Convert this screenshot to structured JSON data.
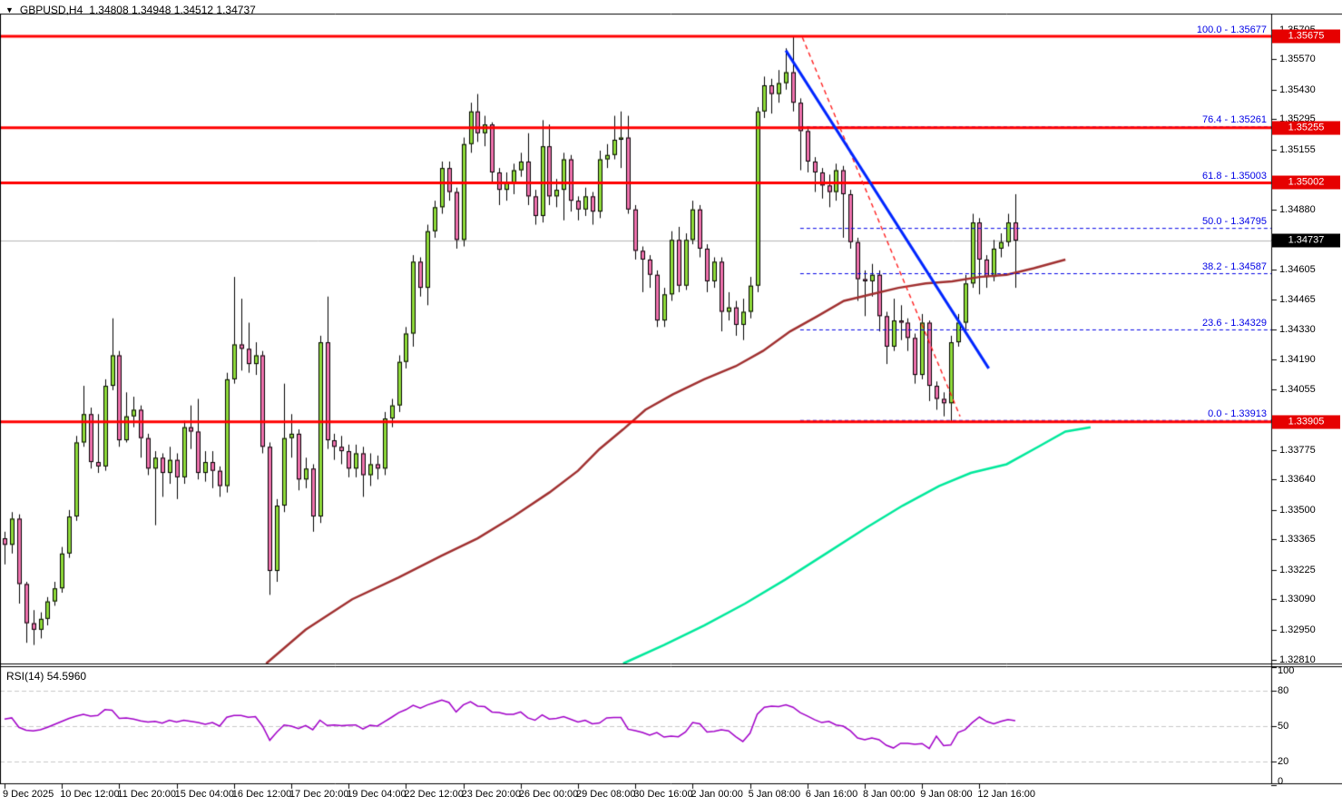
{
  "header": {
    "symbol": "GBPUSD,H4",
    "ohlc": "1.34808 1.34948 1.34512 1.34737"
  },
  "rsi_pane": {
    "name": "RSI(14)",
    "value": "54.5960"
  },
  "colors": {
    "bull": "#8FDC3A",
    "bear": "#F072AE",
    "wick": "#000000",
    "body_border": "#000000",
    "hline_red": "#FF0000",
    "fib_blue": "#0000E6",
    "trend_blue": "#0026FF",
    "trend_red": "#FF2020",
    "ma_slow": "#A03030",
    "ma_fast": "#00E89B",
    "rsi_line": "#A100C8",
    "bid_gray": "#B5B5B5",
    "badge_red": "#E60000",
    "badge_black": "#000000",
    "grid_dash": "#C8C8C8",
    "frame": "#000000"
  },
  "chart_data": {
    "type": "candlestick",
    "title": "GBPUSD,H4",
    "price_axis": {
      "p_top": 1.35775,
      "p_bottom": 1.32795,
      "ticks": [
        1.35705,
        1.3557,
        1.3543,
        1.35295,
        1.35155,
        1.35015,
        1.3488,
        1.3474,
        1.34605,
        1.34465,
        1.3433,
        1.3419,
        1.34055,
        1.33915,
        1.33775,
        1.3364,
        1.335,
        1.33365,
        1.33225,
        1.3309,
        1.3295,
        1.3281
      ]
    },
    "bid": {
      "price": 1.34737,
      "badge": "1.34737"
    },
    "hlines": [
      {
        "price": 1.35675,
        "badge": "1.35675"
      },
      {
        "price": 1.35255,
        "badge": "1.35255"
      },
      {
        "price": 1.35002,
        "badge": "1.35002"
      },
      {
        "price": 1.33905,
        "badge": "1.33905"
      }
    ],
    "fibonacci": {
      "start_index": 111,
      "levels": [
        {
          "pct": 100.0,
          "price": 1.35677,
          "label": "100.0 - 1.35677"
        },
        {
          "pct": 76.4,
          "price": 1.35261,
          "label": "76.4 - 1.35261"
        },
        {
          "pct": 61.8,
          "price": 1.35003,
          "label": "61.8 - 1.35003"
        },
        {
          "pct": 50.0,
          "price": 1.34795,
          "label": "50.0 - 1.34795"
        },
        {
          "pct": 38.2,
          "price": 1.34587,
          "label": "38.2 - 1.34587"
        },
        {
          "pct": 23.6,
          "price": 1.34329,
          "label": "23.6 - 1.34329"
        },
        {
          "pct": 0.0,
          "price": 1.33913,
          "label": "0.0 - 1.33913"
        }
      ]
    },
    "trendlines": {
      "blue_solid": [
        [
          109.0,
          1.3561
        ],
        [
          137.3,
          1.3415
        ]
      ],
      "red_dashed": [
        [
          111.3,
          1.3567
        ],
        [
          133.3,
          1.3393
        ]
      ]
    },
    "ma_slow": [
      [
        36.5,
        1.32795
      ],
      [
        42,
        1.3295
      ],
      [
        48.5,
        1.3309
      ],
      [
        55,
        1.3319
      ],
      [
        61,
        1.3329
      ],
      [
        66,
        1.3337
      ],
      [
        71,
        1.3347
      ],
      [
        76,
        1.3358
      ],
      [
        80,
        1.3368
      ],
      [
        83,
        1.3378
      ],
      [
        86.3,
        1.3387
      ],
      [
        89.4,
        1.3396
      ],
      [
        93.2,
        1.3403
      ],
      [
        97.6,
        1.341
      ],
      [
        102,
        1.3416
      ],
      [
        105.8,
        1.3423
      ],
      [
        109.6,
        1.3432
      ],
      [
        113.4,
        1.3439
      ],
      [
        117.1,
        1.3446
      ],
      [
        120.9,
        1.3449
      ],
      [
        124.7,
        1.3452
      ],
      [
        128.5,
        1.3454
      ],
      [
        132.2,
        1.3455
      ],
      [
        136,
        1.3457
      ],
      [
        139.8,
        1.3458
      ],
      [
        143.6,
        1.3461
      ],
      [
        148,
        1.3465
      ]
    ],
    "ma_fast": [
      [
        86.3,
        1.32795
      ],
      [
        92,
        1.3288
      ],
      [
        97.6,
        1.3297
      ],
      [
        103.3,
        1.3307
      ],
      [
        108.9,
        1.3318
      ],
      [
        114.6,
        1.333
      ],
      [
        120.3,
        1.3342
      ],
      [
        125.3,
        1.3352
      ],
      [
        130.4,
        1.3361
      ],
      [
        134.8,
        1.3367
      ],
      [
        139.8,
        1.3371
      ],
      [
        144.2,
        1.3379
      ],
      [
        148,
        1.3386
      ],
      [
        151.5,
        1.3388
      ]
    ],
    "time_labels": [
      {
        "i": 0,
        "text": "9 Dec 2025"
      },
      {
        "i": 8,
        "text": "10 Dec 12:00"
      },
      {
        "i": 16,
        "text": "11 Dec 20:00"
      },
      {
        "i": 24,
        "text": "15 Dec 04:00"
      },
      {
        "i": 32,
        "text": "16 Dec 12:00"
      },
      {
        "i": 40,
        "text": "17 Dec 20:00"
      },
      {
        "i": 48,
        "text": "19 Dec 04:00"
      },
      {
        "i": 56,
        "text": "22 Dec 12:00"
      },
      {
        "i": 64,
        "text": "23 Dec 20:00"
      },
      {
        "i": 72,
        "text": "26 Dec 00:00"
      },
      {
        "i": 80,
        "text": "29 Dec 08:00"
      },
      {
        "i": 88,
        "text": "30 Dec 16:00"
      },
      {
        "i": 96,
        "text": "2 Jan 00:00"
      },
      {
        "i": 104,
        "text": "5 Jan 08:00"
      },
      {
        "i": 112,
        "text": "6 Jan 16:00"
      },
      {
        "i": 120,
        "text": "8 Jan 00:00"
      },
      {
        "i": 128,
        "text": "9 Jan 08:00"
      },
      {
        "i": 136,
        "text": "12 Jan 16:00"
      }
    ],
    "candles": [
      [
        1.3337,
        1.334,
        1.3325,
        1.3334
      ],
      [
        1.3334,
        1.3349,
        1.333,
        1.3346
      ],
      [
        1.3346,
        1.3348,
        1.3307,
        1.3316
      ],
      [
        1.3316,
        1.3317,
        1.3289,
        1.3298
      ],
      [
        1.3298,
        1.3304,
        1.3288,
        1.3295
      ],
      [
        1.3295,
        1.3303,
        1.3291,
        1.33
      ],
      [
        1.33,
        1.331,
        1.3297,
        1.3308
      ],
      [
        1.3308,
        1.3317,
        1.3306,
        1.3314
      ],
      [
        1.3314,
        1.3333,
        1.3312,
        1.333
      ],
      [
        1.333,
        1.335,
        1.3328,
        1.3347
      ],
      [
        1.3347,
        1.3384,
        1.3345,
        1.3381
      ],
      [
        1.3381,
        1.3407,
        1.3379,
        1.3394
      ],
      [
        1.3394,
        1.3397,
        1.3369,
        1.3372
      ],
      [
        1.3372,
        1.3394,
        1.3367,
        1.337
      ],
      [
        1.337,
        1.341,
        1.3368,
        1.3407
      ],
      [
        1.3407,
        1.3438,
        1.3405,
        1.3421
      ],
      [
        1.3421,
        1.3423,
        1.3379,
        1.3382
      ],
      [
        1.3382,
        1.3404,
        1.3381,
        1.3393
      ],
      [
        1.3393,
        1.3402,
        1.3388,
        1.3396
      ],
      [
        1.3396,
        1.3398,
        1.3374,
        1.3383
      ],
      [
        1.3383,
        1.3385,
        1.3366,
        1.3369
      ],
      [
        1.3369,
        1.3377,
        1.3343,
        1.3374
      ],
      [
        1.3374,
        1.3376,
        1.3356,
        1.3367
      ],
      [
        1.3367,
        1.3379,
        1.3362,
        1.3373
      ],
      [
        1.3373,
        1.3376,
        1.3355,
        1.3365
      ],
      [
        1.3365,
        1.3391,
        1.3362,
        1.3388
      ],
      [
        1.3388,
        1.3398,
        1.3378,
        1.3386
      ],
      [
        1.3386,
        1.3401,
        1.3364,
        1.3367
      ],
      [
        1.3367,
        1.3377,
        1.3363,
        1.3372
      ],
      [
        1.3372,
        1.3377,
        1.336,
        1.3368
      ],
      [
        1.3368,
        1.337,
        1.3356,
        1.3361
      ],
      [
        1.3361,
        1.3413,
        1.3358,
        1.341
      ],
      [
        1.341,
        1.3457,
        1.3408,
        1.3426
      ],
      [
        1.3426,
        1.3447,
        1.3414,
        1.3424
      ],
      [
        1.3424,
        1.3436,
        1.3413,
        1.3417
      ],
      [
        1.3417,
        1.3427,
        1.3412,
        1.3421
      ],
      [
        1.3421,
        1.3423,
        1.3376,
        1.3379
      ],
      [
        1.3379,
        1.3381,
        1.3311,
        1.3322
      ],
      [
        1.3322,
        1.3355,
        1.3317,
        1.3352
      ],
      [
        1.3352,
        1.3408,
        1.3349,
        1.3383
      ],
      [
        1.3383,
        1.3394,
        1.3374,
        1.3385
      ],
      [
        1.3385,
        1.3387,
        1.3359,
        1.3364
      ],
      [
        1.3364,
        1.3374,
        1.336,
        1.3369
      ],
      [
        1.3369,
        1.3371,
        1.334,
        1.3347
      ],
      [
        1.3347,
        1.343,
        1.3344,
        1.3427
      ],
      [
        1.3427,
        1.3448,
        1.3378,
        1.3382
      ],
      [
        1.3382,
        1.3385,
        1.3373,
        1.3379
      ],
      [
        1.3379,
        1.3384,
        1.3371,
        1.3377
      ],
      [
        1.3377,
        1.338,
        1.3365,
        1.3369
      ],
      [
        1.3369,
        1.338,
        1.3365,
        1.3376
      ],
      [
        1.3376,
        1.3379,
        1.3356,
        1.3366
      ],
      [
        1.3366,
        1.3376,
        1.3361,
        1.3371
      ],
      [
        1.3371,
        1.3375,
        1.3364,
        1.3369
      ],
      [
        1.3369,
        1.3395,
        1.3366,
        1.3392
      ],
      [
        1.3392,
        1.3401,
        1.3388,
        1.3398
      ],
      [
        1.3398,
        1.3421,
        1.3395,
        1.3418
      ],
      [
        1.3418,
        1.3434,
        1.3415,
        1.3431
      ],
      [
        1.3431,
        1.3467,
        1.3425,
        1.3464
      ],
      [
        1.3464,
        1.3466,
        1.3448,
        1.3452
      ],
      [
        1.3452,
        1.3481,
        1.3444,
        1.3478
      ],
      [
        1.3478,
        1.3492,
        1.3475,
        1.3489
      ],
      [
        1.3489,
        1.351,
        1.3486,
        1.3507
      ],
      [
        1.3507,
        1.351,
        1.3492,
        1.3496
      ],
      [
        1.3496,
        1.3498,
        1.347,
        1.3474
      ],
      [
        1.3474,
        1.3521,
        1.3471,
        1.3518
      ],
      [
        1.3518,
        1.3537,
        1.3514,
        1.3533
      ],
      [
        1.3533,
        1.3541,
        1.3519,
        1.3523
      ],
      [
        1.3523,
        1.3531,
        1.3517,
        1.3527
      ],
      [
        1.3527,
        1.3528,
        1.35,
        1.3505
      ],
      [
        1.3505,
        1.3507,
        1.349,
        1.3497
      ],
      [
        1.3497,
        1.3505,
        1.3492,
        1.35
      ],
      [
        1.35,
        1.3509,
        1.3495,
        1.3506
      ],
      [
        1.3506,
        1.3514,
        1.3503,
        1.351
      ],
      [
        1.351,
        1.3523,
        1.349,
        1.3494
      ],
      [
        1.3494,
        1.3497,
        1.3481,
        1.3485
      ],
      [
        1.3485,
        1.3529,
        1.3482,
        1.3517
      ],
      [
        1.3517,
        1.3527,
        1.349,
        1.3494
      ],
      [
        1.3494,
        1.3502,
        1.3489,
        1.3497
      ],
      [
        1.3497,
        1.3514,
        1.3483,
        1.3511
      ],
      [
        1.3511,
        1.3513,
        1.3487,
        1.3492
      ],
      [
        1.3492,
        1.3494,
        1.3483,
        1.3488
      ],
      [
        1.3488,
        1.3498,
        1.3485,
        1.3494
      ],
      [
        1.3494,
        1.3496,
        1.3481,
        1.3487
      ],
      [
        1.3487,
        1.3515,
        1.3484,
        1.3511
      ],
      [
        1.3511,
        1.3518,
        1.3507,
        1.3513
      ],
      [
        1.3513,
        1.3531,
        1.3511,
        1.352
      ],
      [
        1.352,
        1.3533,
        1.3507,
        1.3521
      ],
      [
        1.3521,
        1.3531,
        1.3486,
        1.3488
      ],
      [
        1.3488,
        1.349,
        1.3465,
        1.3469
      ],
      [
        1.3469,
        1.3471,
        1.345,
        1.3465
      ],
      [
        1.3465,
        1.3467,
        1.3452,
        1.3458
      ],
      [
        1.3458,
        1.346,
        1.3434,
        1.3437
      ],
      [
        1.3437,
        1.3452,
        1.3434,
        1.3449
      ],
      [
        1.3449,
        1.3478,
        1.3446,
        1.3474
      ],
      [
        1.3474,
        1.348,
        1.345,
        1.3453
      ],
      [
        1.3453,
        1.3477,
        1.3451,
        1.3474
      ],
      [
        1.3474,
        1.3492,
        1.3472,
        1.3488
      ],
      [
        1.3488,
        1.349,
        1.3466,
        1.347
      ],
      [
        1.347,
        1.3472,
        1.345,
        1.3455
      ],
      [
        1.3455,
        1.3466,
        1.3452,
        1.3464
      ],
      [
        1.3464,
        1.3466,
        1.3432,
        1.3441
      ],
      [
        1.3441,
        1.345,
        1.3437,
        1.3443
      ],
      [
        1.3443,
        1.3446,
        1.343,
        1.3435
      ],
      [
        1.3435,
        1.3447,
        1.3428,
        1.3441
      ],
      [
        1.3441,
        1.3457,
        1.3438,
        1.3453
      ],
      [
        1.3453,
        1.3535,
        1.345,
        1.3533
      ],
      [
        1.3533,
        1.3549,
        1.353,
        1.3545
      ],
      [
        1.3545,
        1.3548,
        1.3532,
        1.3541
      ],
      [
        1.3541,
        1.3552,
        1.3537,
        1.3546
      ],
      [
        1.3546,
        1.3562,
        1.3543,
        1.3551
      ],
      [
        1.3551,
        1.35675,
        1.3533,
        1.3537
      ],
      [
        1.3537,
        1.3539,
        1.3506,
        1.3524
      ],
      [
        1.3524,
        1.3526,
        1.3505,
        1.351
      ],
      [
        1.351,
        1.3512,
        1.3496,
        1.3505
      ],
      [
        1.3505,
        1.3507,
        1.3493,
        1.3499
      ],
      [
        1.3499,
        1.3504,
        1.3489,
        1.3496
      ],
      [
        1.3496,
        1.3509,
        1.3492,
        1.3506
      ],
      [
        1.3506,
        1.3508,
        1.3475,
        1.3495
      ],
      [
        1.3495,
        1.3497,
        1.347,
        1.3473
      ],
      [
        1.3473,
        1.3475,
        1.3446,
        1.3456
      ],
      [
        1.3456,
        1.346,
        1.3439,
        1.3455
      ],
      [
        1.3455,
        1.3463,
        1.3448,
        1.3458
      ],
      [
        1.3458,
        1.346,
        1.3432,
        1.3439
      ],
      [
        1.3439,
        1.3441,
        1.3417,
        1.3425
      ],
      [
        1.3425,
        1.3447,
        1.3423,
        1.3437
      ],
      [
        1.3437,
        1.3444,
        1.3428,
        1.3436
      ],
      [
        1.3436,
        1.3438,
        1.3423,
        1.3429
      ],
      [
        1.3429,
        1.3431,
        1.3408,
        1.3412
      ],
      [
        1.3412,
        1.344,
        1.341,
        1.3436
      ],
      [
        1.3436,
        1.3437,
        1.34,
        1.3407
      ],
      [
        1.3407,
        1.3409,
        1.3396,
        1.3401
      ],
      [
        1.3401,
        1.3404,
        1.3393,
        1.3399
      ],
      [
        1.3399,
        1.343,
        1.33905,
        1.3427
      ],
      [
        1.3427,
        1.344,
        1.3425,
        1.3436
      ],
      [
        1.3436,
        1.3458,
        1.3433,
        1.3454
      ],
      [
        1.3454,
        1.3486,
        1.3452,
        1.3482
      ],
      [
        1.3482,
        1.3484,
        1.3449,
        1.3465
      ],
      [
        1.3465,
        1.3467,
        1.3452,
        1.3457
      ],
      [
        1.3457,
        1.3474,
        1.3455,
        1.347
      ],
      [
        1.347,
        1.3477,
        1.3466,
        1.3473
      ],
      [
        1.3473,
        1.3486,
        1.3471,
        1.3482
      ],
      [
        1.3482,
        1.3495,
        1.3452,
        1.34737
      ]
    ],
    "rsi": {
      "range": [
        0,
        100
      ],
      "grid": [
        80,
        50,
        20
      ],
      "axis_ticks": [
        100,
        80,
        50,
        20,
        0
      ],
      "values": [
        56,
        57,
        49,
        46.5,
        46,
        47,
        49,
        51.5,
        54,
        56.5,
        58.5,
        60,
        58.5,
        59,
        64,
        63.5,
        56.5,
        57,
        56,
        54.5,
        53.5,
        54,
        52.5,
        55,
        53.5,
        55,
        54,
        53,
        51.5,
        53,
        50,
        57.5,
        59,
        59,
        57.5,
        58,
        50,
        38,
        45,
        51,
        50,
        48,
        50.5,
        47,
        55,
        50.5,
        51,
        50.3,
        50.7,
        51,
        47.5,
        50.7,
        50,
        53.8,
        57.5,
        61.5,
        64,
        67.6,
        65.3,
        68,
        70,
        72,
        70,
        62,
        68,
        70.7,
        67,
        66.5,
        62,
        61.6,
        60,
        60,
        62,
        57,
        55,
        59.5,
        56,
        56.5,
        58.1,
        55.8,
        53.5,
        55,
        52,
        52.7,
        57,
        57.3,
        57.3,
        47.4,
        46.1,
        44.6,
        42.3,
        44.6,
        40.7,
        41.5,
        41,
        45,
        53,
        52,
        45,
        45.5,
        47,
        46,
        41,
        37,
        44,
        60,
        66,
        67,
        66.5,
        68,
        66,
        61.5,
        58.5,
        55.5,
        53,
        54,
        51,
        50,
        46,
        40,
        38.5,
        40,
        38.5,
        33.8,
        31.5,
        35.4,
        35.4,
        34.6,
        35.2,
        31,
        41.5,
        33.5,
        34,
        44.6,
        47,
        53,
        57.7,
        54,
        52,
        54,
        55.5,
        54.6
      ]
    }
  }
}
